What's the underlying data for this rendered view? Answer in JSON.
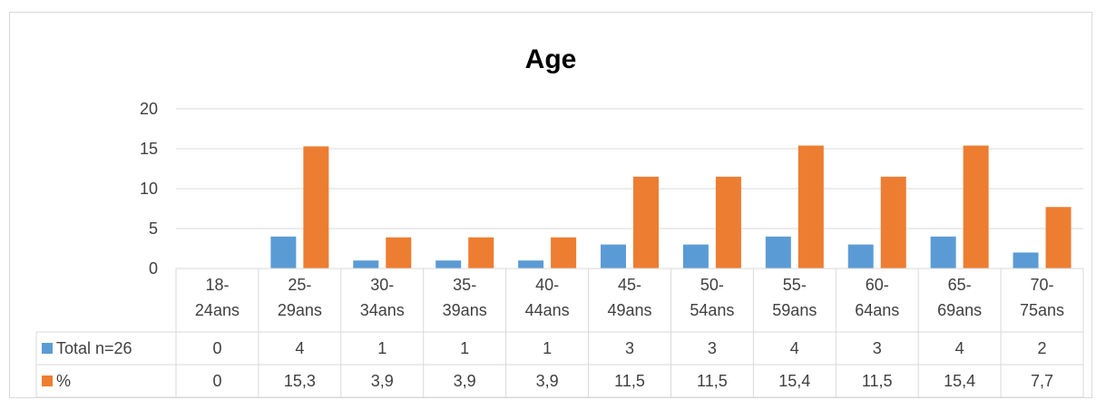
{
  "chart_data": {
    "type": "bar",
    "title": "Age",
    "categories": [
      [
        "18-",
        "24ans"
      ],
      [
        "25-",
        "29ans"
      ],
      [
        "30-",
        "34ans"
      ],
      [
        "35-",
        "39ans"
      ],
      [
        "40-",
        "44ans"
      ],
      [
        "45-",
        "49ans"
      ],
      [
        "50-",
        "54ans"
      ],
      [
        "55-",
        "59ans"
      ],
      [
        "60-",
        "64ans"
      ],
      [
        "65-",
        "69ans"
      ],
      [
        "70-",
        "75ans"
      ]
    ],
    "series": [
      {
        "name": "Total n=26",
        "color": "#5b9bd5",
        "values": [
          0,
          4,
          1,
          1,
          1,
          3,
          3,
          4,
          3,
          4,
          2
        ],
        "labels": [
          "0",
          "4",
          "1",
          "1",
          "1",
          "3",
          "3",
          "4",
          "3",
          "4",
          "2"
        ]
      },
      {
        "name": "%",
        "color": "#ed7d31",
        "values": [
          0,
          15.3,
          3.9,
          3.9,
          3.9,
          11.5,
          11.5,
          15.4,
          11.5,
          15.4,
          7.7
        ],
        "labels": [
          "0",
          "15,3",
          "3,9",
          "3,9",
          "3,9",
          "11,5",
          "11,5",
          "15,4",
          "11,5",
          "15,4",
          "7,7"
        ]
      }
    ],
    "ylim": [
      0,
      20
    ],
    "yticks": [
      0,
      5,
      10,
      15,
      20
    ],
    "grid": true,
    "legend": "data-table"
  }
}
